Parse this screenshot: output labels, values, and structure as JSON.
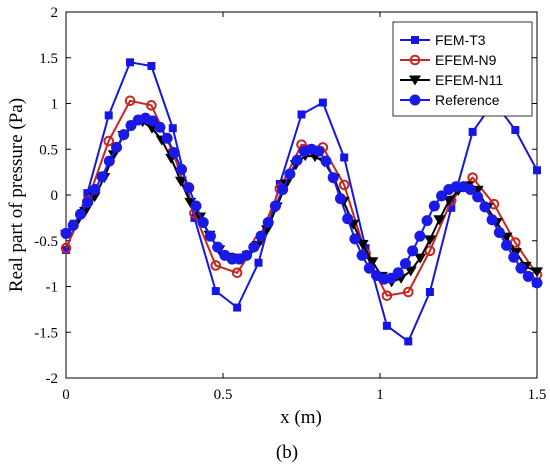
{
  "chart_data": {
    "type": "line",
    "xlabel": "x (m)",
    "ylabel": "Real part of pressure (Pa)",
    "xlim": [
      0,
      1.5
    ],
    "ylim": [
      -2,
      2
    ],
    "xticks": [
      0,
      0.5,
      1,
      1.5
    ],
    "yticks": [
      -2,
      -1.5,
      -1,
      -0.5,
      0,
      0.5,
      1,
      1.5,
      2
    ],
    "xtick_labels": [
      "0",
      "0.5",
      "1",
      "1.5"
    ],
    "ytick_labels": [
      "-2",
      "-1.5",
      "-1",
      "-0.5",
      "0",
      "0.5",
      "1",
      "1.5",
      "2"
    ],
    "grid": false,
    "legend_position": "top-right",
    "panel_label": "(b)",
    "series": [
      {
        "name": "FEM-T3",
        "color": "#1515e6",
        "marker": "square",
        "x": [
          0.0,
          0.068,
          0.136,
          0.204,
          0.272,
          0.34,
          0.409,
          0.477,
          0.545,
          0.613,
          0.681,
          0.75,
          0.818,
          0.886,
          0.954,
          1.022,
          1.09,
          1.159,
          1.227,
          1.295,
          1.363,
          1.431,
          1.5
        ],
        "y": [
          -0.6,
          0.02,
          0.87,
          1.45,
          1.41,
          0.73,
          -0.25,
          -1.05,
          -1.23,
          -0.74,
          0.12,
          0.88,
          1.01,
          0.41,
          -0.58,
          -1.43,
          -1.6,
          -1.06,
          -0.14,
          0.69,
          1.02,
          0.71,
          0.27
        ]
      },
      {
        "name": "EFEM-N9",
        "color": "#c8261e",
        "marker": "circle-open",
        "x": [
          0.0,
          0.068,
          0.136,
          0.204,
          0.272,
          0.34,
          0.409,
          0.477,
          0.545,
          0.613,
          0.681,
          0.75,
          0.818,
          0.886,
          0.954,
          1.022,
          1.09,
          1.159,
          1.227,
          1.295,
          1.363,
          1.431,
          1.5
        ],
        "y": [
          -0.58,
          -0.07,
          0.59,
          1.03,
          0.98,
          0.47,
          -0.2,
          -0.77,
          -0.85,
          -0.5,
          0.07,
          0.55,
          0.52,
          0.11,
          -0.64,
          -1.1,
          -1.06,
          -0.61,
          -0.06,
          0.19,
          -0.1,
          -0.52,
          -0.87
        ]
      },
      {
        "name": "EFEM-N11",
        "color": "#000000",
        "marker": "triangle-down",
        "x": [
          0.0,
          0.03,
          0.061,
          0.091,
          0.122,
          0.152,
          0.183,
          0.213,
          0.244,
          0.274,
          0.305,
          0.335,
          0.366,
          0.396,
          0.427,
          0.457,
          0.488,
          0.518,
          0.549,
          0.579,
          0.61,
          0.64,
          0.671,
          0.701,
          0.732,
          0.762,
          0.793,
          0.823,
          0.854,
          0.884,
          0.915,
          0.945,
          0.976,
          1.006,
          1.037,
          1.067,
          1.098,
          1.128,
          1.159,
          1.189,
          1.22,
          1.25,
          1.281,
          1.311,
          1.342,
          1.372,
          1.403,
          1.433,
          1.464,
          1.5
        ],
        "y": [
          -0.43,
          -0.32,
          -0.18,
          -0.02,
          0.19,
          0.44,
          0.65,
          0.76,
          0.8,
          0.73,
          0.6,
          0.4,
          0.15,
          -0.08,
          -0.24,
          -0.44,
          -0.6,
          -0.68,
          -0.69,
          -0.66,
          -0.55,
          -0.38,
          -0.13,
          0.12,
          0.33,
          0.43,
          0.42,
          0.36,
          0.18,
          -0.07,
          -0.32,
          -0.54,
          -0.73,
          -0.89,
          -0.95,
          -0.91,
          -0.83,
          -0.69,
          -0.49,
          -0.27,
          -0.06,
          0.05,
          0.1,
          0.05,
          -0.14,
          -0.3,
          -0.46,
          -0.63,
          -0.78,
          -0.84
        ]
      },
      {
        "name": "Reference",
        "color": "#1a1ae8",
        "marker": "circle-filled",
        "x": [
          0.0,
          0.023,
          0.046,
          0.069,
          0.092,
          0.115,
          0.138,
          0.161,
          0.184,
          0.207,
          0.23,
          0.253,
          0.276,
          0.299,
          0.322,
          0.345,
          0.368,
          0.391,
          0.414,
          0.437,
          0.46,
          0.483,
          0.506,
          0.529,
          0.552,
          0.575,
          0.598,
          0.621,
          0.644,
          0.667,
          0.69,
          0.713,
          0.736,
          0.759,
          0.782,
          0.805,
          0.828,
          0.851,
          0.874,
          0.897,
          0.92,
          0.943,
          0.966,
          0.989,
          1.012,
          1.035,
          1.058,
          1.081,
          1.104,
          1.127,
          1.15,
          1.173,
          1.196,
          1.219,
          1.242,
          1.265,
          1.288,
          1.311,
          1.334,
          1.357,
          1.38,
          1.403,
          1.426,
          1.449,
          1.472,
          1.5
        ],
        "y": [
          -0.42,
          -0.33,
          -0.21,
          -0.08,
          0.06,
          0.2,
          0.37,
          0.52,
          0.66,
          0.76,
          0.82,
          0.84,
          0.81,
          0.74,
          0.62,
          0.46,
          0.28,
          0.08,
          -0.12,
          -0.3,
          -0.45,
          -0.57,
          -0.66,
          -0.7,
          -0.7,
          -0.66,
          -0.57,
          -0.45,
          -0.3,
          -0.12,
          0.06,
          0.23,
          0.38,
          0.48,
          0.5,
          0.48,
          0.37,
          0.19,
          -0.04,
          -0.26,
          -0.48,
          -0.66,
          -0.8,
          -0.88,
          -0.92,
          -0.91,
          -0.85,
          -0.75,
          -0.61,
          -0.45,
          -0.28,
          -0.12,
          -0.01,
          0.06,
          0.09,
          0.09,
          0.06,
          -0.02,
          -0.13,
          -0.27,
          -0.41,
          -0.55,
          -0.68,
          -0.8,
          -0.89,
          -0.96
        ]
      }
    ]
  }
}
